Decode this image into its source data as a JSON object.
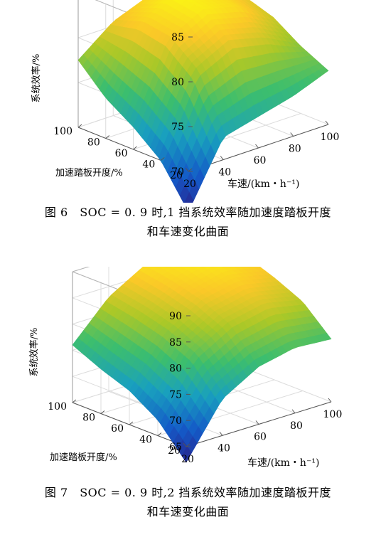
{
  "figures": [
    {
      "caption_line1": "图 6　SOC = 0. 9 时,1 挡系统效率随加速度踏板开度",
      "caption_line2": "和车速变化曲面",
      "chart_data": {
        "type": "surface",
        "xlabel": "车速/(km・h⁻¹)",
        "ylabel": "加速踏板开度/%",
        "zlabel": "系统效率/%",
        "x_ticks": [
          20,
          40,
          60,
          80,
          100
        ],
        "y_ticks": [
          20,
          40,
          60,
          80,
          100
        ],
        "z_ticks": [
          70,
          75,
          80,
          85
        ],
        "xlim": [
          20,
          100
        ],
        "ylim": [
          20,
          100
        ],
        "zlim": [
          70,
          85
        ],
        "grid": true,
        "x": [
          20,
          40,
          60,
          80,
          100
        ],
        "y": [
          20,
          40,
          60,
          80,
          100
        ],
        "z": [
          [
            65.5,
            72.5,
            73.5,
            74.5,
            76.0
          ],
          [
            70.0,
            78.5,
            80.5,
            79.5,
            77.5
          ],
          [
            72.5,
            81.0,
            83.0,
            82.0,
            79.5
          ],
          [
            74.5,
            81.5,
            83.5,
            82.5,
            80.5
          ],
          [
            77.5,
            80.5,
            82.0,
            81.5,
            80.5
          ]
        ]
      }
    },
    {
      "caption_line1": "图 7　SOC = 0. 9 时,2 挡系统效率随加速度踏板开度",
      "caption_line2": "和车速变化曲面",
      "chart_data": {
        "type": "surface",
        "xlabel": "车速/(km・h⁻¹)",
        "ylabel": "加速踏板开度/%",
        "zlabel": "系统效率/%",
        "x_ticks": [
          20,
          40,
          60,
          80,
          100
        ],
        "y_ticks": [
          20,
          40,
          60,
          80,
          100
        ],
        "z_ticks": [
          65,
          70,
          75,
          80,
          85,
          90
        ],
        "xlim": [
          20,
          100
        ],
        "ylim": [
          20,
          100
        ],
        "zlim": [
          65,
          90
        ],
        "grid": true,
        "x": [
          20,
          40,
          60,
          80,
          100
        ],
        "y": [
          20,
          40,
          60,
          80,
          100
        ],
        "z": [
          [
            62.0,
            72.0,
            76.0,
            77.5,
            77.0
          ],
          [
            68.0,
            78.0,
            82.0,
            83.5,
            82.0
          ],
          [
            71.5,
            80.5,
            84.5,
            86.0,
            84.5
          ],
          [
            73.5,
            82.0,
            86.0,
            88.0,
            86.5
          ],
          [
            76.0,
            83.0,
            87.0,
            89.0,
            87.5
          ]
        ]
      }
    }
  ]
}
